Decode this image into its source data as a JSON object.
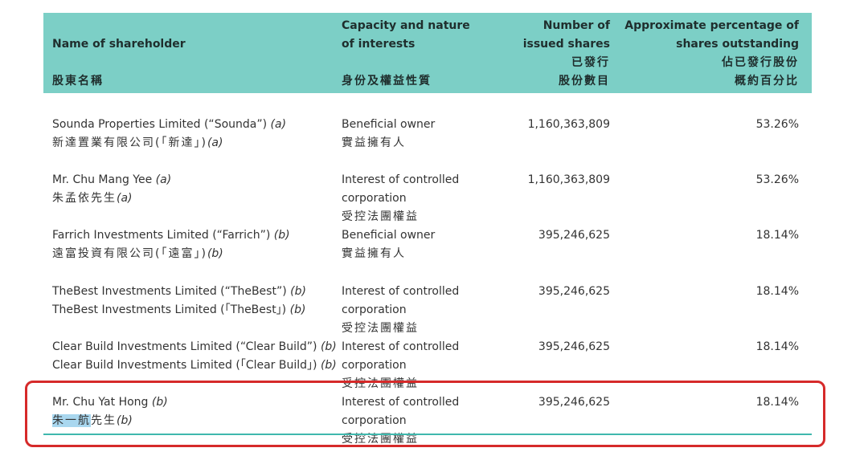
{
  "header": {
    "col1": {
      "line1": "Name of shareholder",
      "zh": "股東名稱"
    },
    "col2": {
      "line1": "Capacity and nature",
      "line2": "of interests",
      "zh": "身份及權益性質"
    },
    "col3": {
      "line1": "Number of",
      "line2": "issued shares",
      "zh1": "已發行",
      "zh2": "股份數目"
    },
    "col4": {
      "line1": "Approximate percentage of",
      "line2": "shares outstanding",
      "zh1": "佔已發行股份",
      "zh2": "概約百分比"
    }
  },
  "rows": [
    {
      "name_en": "Sounda Properties Limited (“Sounda”)",
      "note": "(a)",
      "name_zh": "新達置業有限公司(「新達」)",
      "cap_en": "Beneficial owner",
      "cap_zh": "實益擁有人",
      "shares": "1,160,363,809",
      "pct": "53.26%"
    },
    {
      "name_en": "Mr. Chu Mang Yee",
      "note": "(a)",
      "name_zh": "朱孟依先生",
      "cap_en": "Interest of controlled corporation",
      "cap_zh": "受控法團權益",
      "shares": "1,160,363,809",
      "pct": "53.26%"
    },
    {
      "name_en": "Farrich Investments Limited (“Farrich”)",
      "note": "(b)",
      "name_zh": "遠富投資有限公司(「遠富」)",
      "cap_en": "Beneficial owner",
      "cap_zh": "實益擁有人",
      "shares": "395,246,625",
      "pct": "18.14%"
    },
    {
      "name_en": "TheBest Investments Limited (“TheBest”)",
      "note": "(b)",
      "name_zh": "TheBest Investments Limited (「TheBest」)",
      "cap_en": "Interest of controlled corporation",
      "cap_zh": "受控法團權益",
      "shares": "395,246,625",
      "pct": "18.14%"
    },
    {
      "name_en": "Clear Build Investments Limited (“Clear Build”)",
      "note": "(b)",
      "name_zh": "Clear Build Investments Limited (「Clear Build」)",
      "cap_en": "Interest of controlled corporation",
      "cap_zh": "受控法團權益",
      "shares": "395,246,625",
      "pct": "18.14%"
    },
    {
      "name_en": "Mr. Chu Yat Hong",
      "note": "(b)",
      "name_zh_highlight": "朱一航",
      "name_zh": "先生",
      "cap_en": "Interest of controlled corporation",
      "cap_zh": "受控法團權益",
      "shares": "395,246,625",
      "pct": "18.14%"
    }
  ],
  "colors": {
    "header_bg": "#7ccfc6",
    "rule": "#3fb8ad",
    "highlight_box": "#d62a2a",
    "text_highlight": "#a9d7ef"
  }
}
